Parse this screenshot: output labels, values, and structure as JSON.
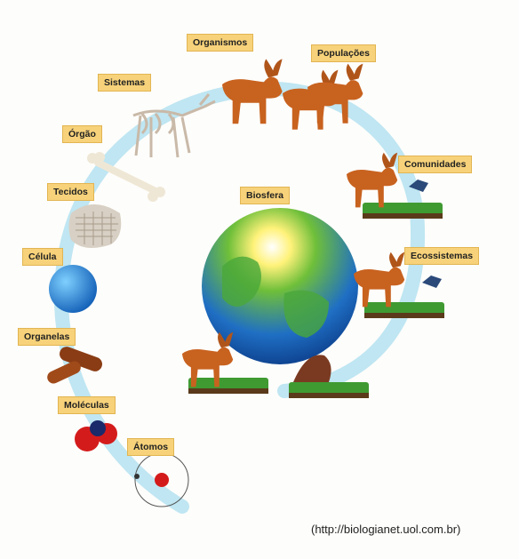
{
  "labels": {
    "organismos": "Organismos",
    "populacoes": "Populações",
    "sistemas": "Sistemas",
    "orgao": "Órgão",
    "comunidades": "Comunidades",
    "tecidos": "Tecidos",
    "biosfera": "Biosfera",
    "celula": "Célula",
    "ecossistemas": "Ecossistemas",
    "organelas": "Organelas",
    "moleculas": "Moléculas",
    "atomos": "Átomos"
  },
  "credit": "(http://biologianet.uol.com.br)",
  "colors": {
    "label_bg": "#f7d27a",
    "spiral": "#bfe6f2",
    "moose": "#c8621f",
    "grass": "#3f9a32"
  }
}
